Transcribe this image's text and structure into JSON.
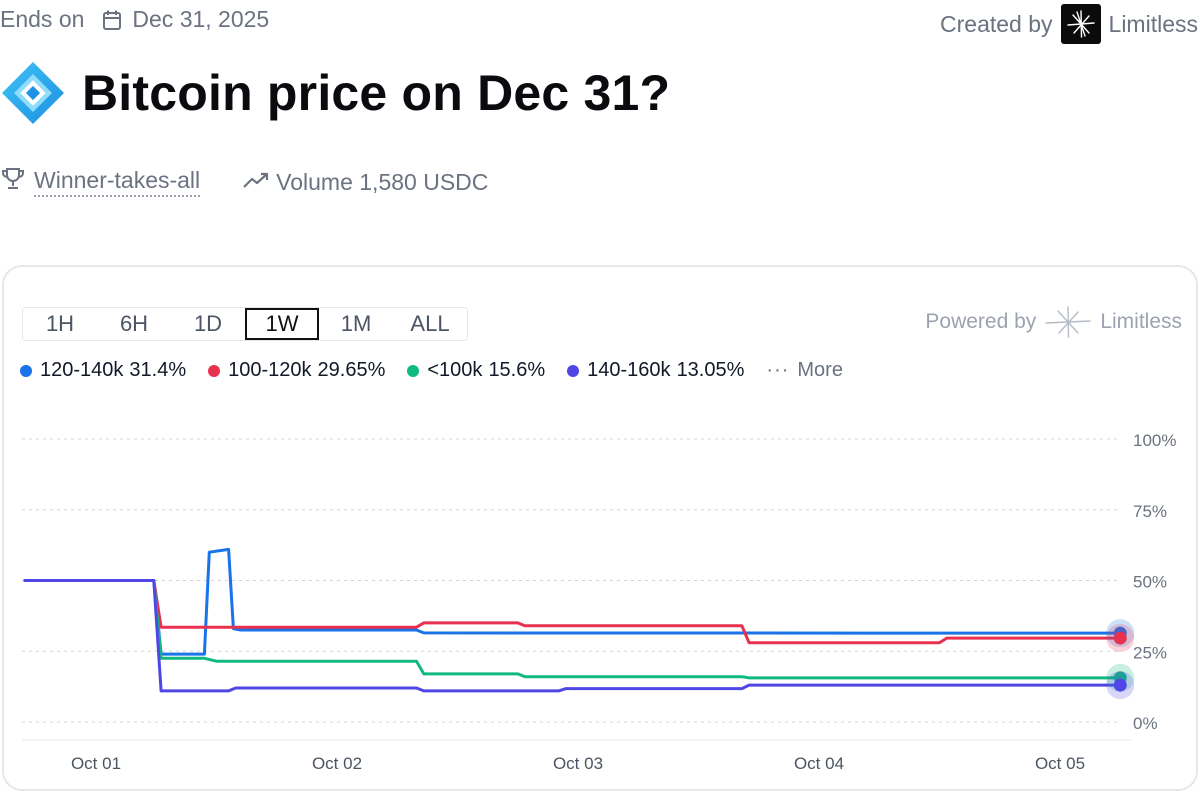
{
  "header": {
    "ends_label": "Ends on",
    "ends_date": "Dec 31, 2025",
    "created_label": "Created by",
    "creator": "Limitless"
  },
  "market": {
    "title": "Bitcoin price on Dec 31?",
    "type_label": "Winner-takes-all",
    "volume_label": "Volume 1,580 USDC"
  },
  "chart_panel": {
    "timeframes": [
      "1H",
      "6H",
      "1D",
      "1W",
      "1M",
      "ALL"
    ],
    "active_timeframe": "1W",
    "powered_by": "Powered by",
    "powered_brand": "Limitless",
    "more_label": "More"
  },
  "chart_data": {
    "type": "line",
    "xlabel": "",
    "ylabel": "",
    "x_ticks": [
      "Oct 01",
      "Oct 02",
      "Oct 03",
      "Oct 04",
      "Oct 05"
    ],
    "y_ticks": [
      "100%",
      "75%",
      "50%",
      "25%",
      "0%"
    ],
    "ylim": [
      0,
      100
    ],
    "grid": true,
    "legend_position": "top-left",
    "series": [
      {
        "name": "120-140k",
        "current": "31.4%",
        "color": "#1a73e8",
        "points": [
          [
            0.7,
            50
          ],
          [
            1.24,
            50
          ],
          [
            1.27,
            24
          ],
          [
            1.45,
            24
          ],
          [
            1.47,
            60
          ],
          [
            1.55,
            61
          ],
          [
            1.57,
            33
          ],
          [
            1.6,
            32.5
          ],
          [
            2.33,
            32.5
          ],
          [
            2.36,
            31.5
          ],
          [
            4.2,
            31.4
          ],
          [
            5.25,
            31.4
          ]
        ]
      },
      {
        "name": "100-120k",
        "current": "29.65%",
        "color": "#e8304f",
        "points": [
          [
            0.7,
            50
          ],
          [
            1.24,
            50
          ],
          [
            1.27,
            33.5
          ],
          [
            2.33,
            33.5
          ],
          [
            2.36,
            35
          ],
          [
            2.75,
            35
          ],
          [
            2.78,
            34
          ],
          [
            3.68,
            34
          ],
          [
            3.71,
            28
          ],
          [
            4.5,
            28
          ],
          [
            4.53,
            29.65
          ],
          [
            5.25,
            29.65
          ]
        ]
      },
      {
        "name": "<100k",
        "current": "15.6%",
        "color": "#10b981",
        "points": [
          [
            0.7,
            50
          ],
          [
            1.24,
            50
          ],
          [
            1.27,
            22.5
          ],
          [
            1.45,
            22.5
          ],
          [
            1.5,
            21.5
          ],
          [
            2.33,
            21.5
          ],
          [
            2.36,
            17
          ],
          [
            2.75,
            17
          ],
          [
            2.78,
            16
          ],
          [
            3.68,
            16
          ],
          [
            3.71,
            15.6
          ],
          [
            5.25,
            15.6
          ]
        ]
      },
      {
        "name": "140-160k",
        "current": "13.05%",
        "color": "#4f46e5",
        "points": [
          [
            0.7,
            50
          ],
          [
            1.24,
            50
          ],
          [
            1.27,
            11
          ],
          [
            1.55,
            11
          ],
          [
            1.58,
            12
          ],
          [
            2.33,
            12
          ],
          [
            2.36,
            11
          ],
          [
            2.92,
            11
          ],
          [
            2.95,
            11.8
          ],
          [
            3.68,
            11.8
          ],
          [
            3.71,
            13.05
          ],
          [
            5.25,
            13.05
          ]
        ]
      }
    ]
  },
  "icons": {
    "calendar": "calendar-icon",
    "trophy": "trophy-icon",
    "trending": "trending-up-icon",
    "brand": "limitless-logo-icon",
    "market": "bitcoin-market-icon"
  }
}
